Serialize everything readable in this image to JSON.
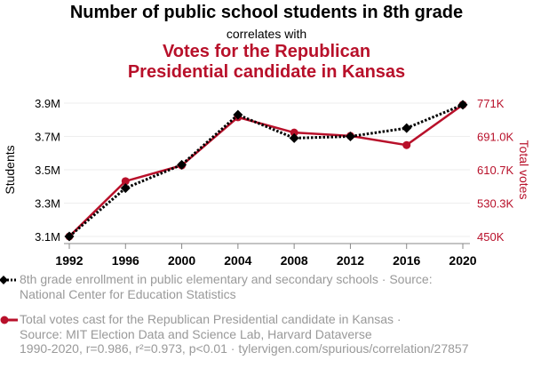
{
  "header": {
    "title": "Number of public school students in 8th grade",
    "subtitle": "correlates with",
    "title2": "Votes for the Republican Presidential candidate in Kansas"
  },
  "colors": {
    "series1": "#000000",
    "series2": "#b8102a",
    "grid": "#eeeeee",
    "legend_text": "#999999"
  },
  "chart_data": {
    "type": "line",
    "title": "Number of public school students in 8th grade correlates with Votes for the Republican Presidential candidate in Kansas",
    "x": [
      1992,
      1996,
      2000,
      2004,
      2008,
      2012,
      2016,
      2020
    ],
    "x_tick_labels": [
      "1992",
      "1996",
      "2000",
      "2004",
      "2008",
      "2012",
      "2016",
      "2020"
    ],
    "ylabel": "Students",
    "y2label": "Total votes",
    "ylim": [
      3.1,
      3.9
    ],
    "y_tick_values": [
      3.1,
      3.3,
      3.5,
      3.7,
      3.9
    ],
    "y_tick_labels": [
      "3.1M",
      "3.3M",
      "3.5M",
      "3.7M",
      "3.9M"
    ],
    "y2lim": [
      450,
      771
    ],
    "y2_tick_values": [
      450,
      530.3,
      610.7,
      691.0,
      771
    ],
    "y2_tick_labels": [
      "450K",
      "530.3K",
      "610.7K",
      "691.0K",
      "771K"
    ],
    "grid": true,
    "legend_position": "bottom",
    "series": [
      {
        "name": "8th grade enrollment in public elementary and secondary schools",
        "axis": "left",
        "units": "millions",
        "style": "dotted",
        "marker": "diamond",
        "values": [
          3.1,
          3.39,
          3.53,
          3.83,
          3.69,
          3.7,
          3.75,
          3.89
        ]
      },
      {
        "name": "Total votes cast for the Republican Presidential candidate in Kansas",
        "axis": "right",
        "units": "thousands",
        "style": "solid",
        "marker": "circle",
        "values": [
          450,
          583,
          621,
          737,
          700,
          692,
          670,
          767
        ]
      }
    ]
  },
  "legend": [
    {
      "line1": "8th grade enrollment in public elementary and secondary schools · Source:",
      "line2": "National Center for Education Statistics"
    },
    {
      "line1": "Total votes cast for the Republican Presidential candidate in Kansas ·",
      "line2": "Source: MIT Election Data and Science Lab, Harvard Dataverse"
    }
  ],
  "footnote": "1990-2020, r=0.986, r²=0.973, p<0.01 · tylervigen.com/spurious/correlation/27857"
}
